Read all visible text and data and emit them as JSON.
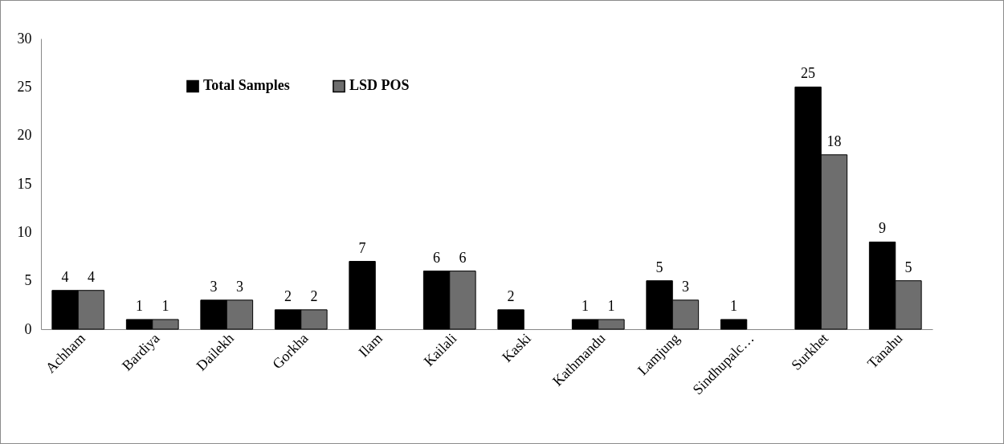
{
  "chart_data": {
    "type": "bar",
    "categories": [
      "Achham",
      "Bardiya",
      "Dailekh",
      "Gorkha",
      "Ilam",
      "Kailali",
      "Kaski",
      "Kathmandu",
      "Lamjung",
      "Sindhupalc…",
      "Surkhet",
      "Tanahu"
    ],
    "series": [
      {
        "name": "Total Samples",
        "color": "#000000",
        "values": [
          4,
          1,
          3,
          2,
          7,
          6,
          2,
          1,
          5,
          1,
          25,
          9
        ]
      },
      {
        "name": "LSD POS",
        "color": "#6e6e6e",
        "values": [
          4,
          1,
          3,
          2,
          null,
          6,
          null,
          1,
          3,
          null,
          18,
          5
        ]
      }
    ],
    "ylim": [
      0,
      30
    ],
    "yticks": [
      0,
      5,
      10,
      15,
      20,
      25,
      30
    ],
    "grid": false,
    "legend": "top",
    "data_labels": true
  }
}
